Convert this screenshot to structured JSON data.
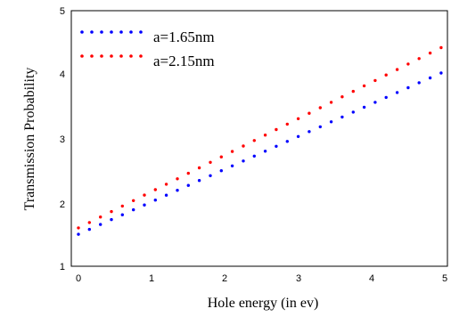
{
  "chart_data": {
    "type": "scatter",
    "title": "",
    "xlabel": "Hole energy (in ev)",
    "ylabel": "Transmission Probability",
    "xlim": [
      0,
      5
    ],
    "ylim": [
      1,
      5
    ],
    "xticks": [
      "0",
      "1",
      "2",
      "3",
      "4",
      "5"
    ],
    "yticks": [
      "1",
      "2",
      "3",
      "4",
      "5"
    ],
    "grid": false,
    "legend_position": "top-left",
    "series": [
      {
        "name": "a=1.65nm",
        "color": "#0000ff",
        "x": [
          0,
          0.15,
          0.3,
          0.45,
          0.6,
          0.75,
          0.9,
          1.05,
          1.2,
          1.35,
          1.5,
          1.65,
          1.8,
          1.95,
          2.1,
          2.25,
          2.4,
          2.55,
          2.7,
          2.85,
          3.0,
          3.15,
          3.3,
          3.45,
          3.6,
          3.75,
          3.9,
          4.05,
          4.2,
          4.35,
          4.5,
          4.65,
          4.8,
          4.95
        ],
        "y": [
          1.5,
          1.577,
          1.653,
          1.73,
          1.806,
          1.883,
          1.959,
          2.036,
          2.112,
          2.189,
          2.265,
          2.342,
          2.418,
          2.495,
          2.571,
          2.648,
          2.724,
          2.801,
          2.877,
          2.954,
          3.03,
          3.107,
          3.183,
          3.26,
          3.336,
          3.413,
          3.489,
          3.566,
          3.642,
          3.719,
          3.795,
          3.872,
          3.948,
          4.025
        ]
      },
      {
        "name": "a=2.15nm",
        "color": "#ff0000",
        "x": [
          0,
          0.15,
          0.3,
          0.45,
          0.6,
          0.75,
          0.9,
          1.05,
          1.2,
          1.35,
          1.5,
          1.65,
          1.8,
          1.95,
          2.1,
          2.25,
          2.4,
          2.55,
          2.7,
          2.85,
          3.0,
          3.15,
          3.3,
          3.45,
          3.6,
          3.75,
          3.9,
          4.05,
          4.2,
          4.35,
          4.5,
          4.65,
          4.8,
          4.95
        ],
        "y": [
          1.6,
          1.685,
          1.771,
          1.856,
          1.942,
          2.027,
          2.113,
          2.198,
          2.284,
          2.369,
          2.455,
          2.54,
          2.626,
          2.711,
          2.797,
          2.882,
          2.968,
          3.053,
          3.139,
          3.224,
          3.31,
          3.395,
          3.481,
          3.566,
          3.652,
          3.737,
          3.823,
          3.908,
          3.994,
          4.079,
          4.165,
          4.25,
          4.336,
          4.421
        ]
      }
    ]
  }
}
